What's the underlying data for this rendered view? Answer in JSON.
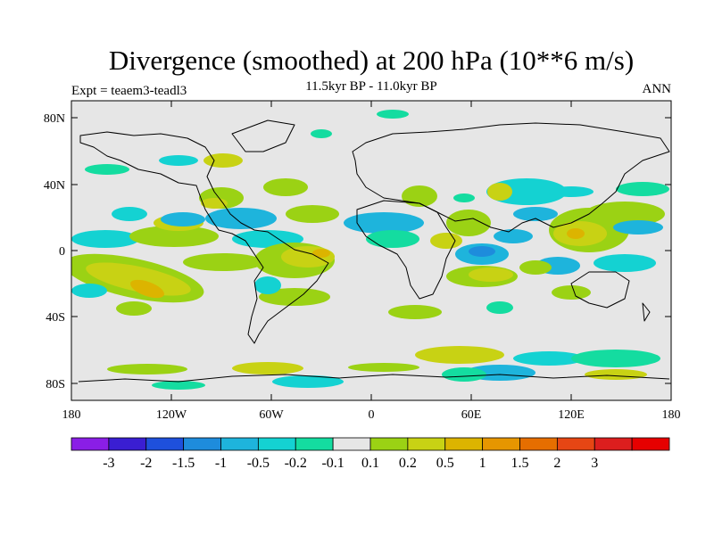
{
  "title": "Divergence (smoothed) at 200 hPa (10**6 m/s)",
  "subtitle": "11.5kyr BP - 11.0kyr BP",
  "left_label": "Expt = teaem3-teadl3",
  "right_label": "ANN",
  "map": {
    "lat_ticks": [
      "80N",
      "40N",
      "0",
      "40S",
      "80S"
    ],
    "lon_ticks": [
      "180",
      "120W",
      "60W",
      "0",
      "60E",
      "120E",
      "180"
    ],
    "background": "#e6e6e6"
  },
  "colorbar": {
    "colors": [
      "#8a1ee6",
      "#3a1ed2",
      "#1e50dc",
      "#1e8cdc",
      "#1eb4dc",
      "#14d2d2",
      "#14dca0",
      "#e6e6e6",
      "#9bd214",
      "#c8d214",
      "#dcb400",
      "#e69600",
      "#e66e00",
      "#e64614",
      "#dc1e1e",
      "#e60000"
    ],
    "labels": [
      "-3",
      "-2",
      "-1.5",
      "-1",
      "-0.5",
      "-0.2",
      "-0.1",
      "0.1",
      "0.2",
      "0.5",
      "1",
      "1.5",
      "2",
      "3"
    ]
  }
}
